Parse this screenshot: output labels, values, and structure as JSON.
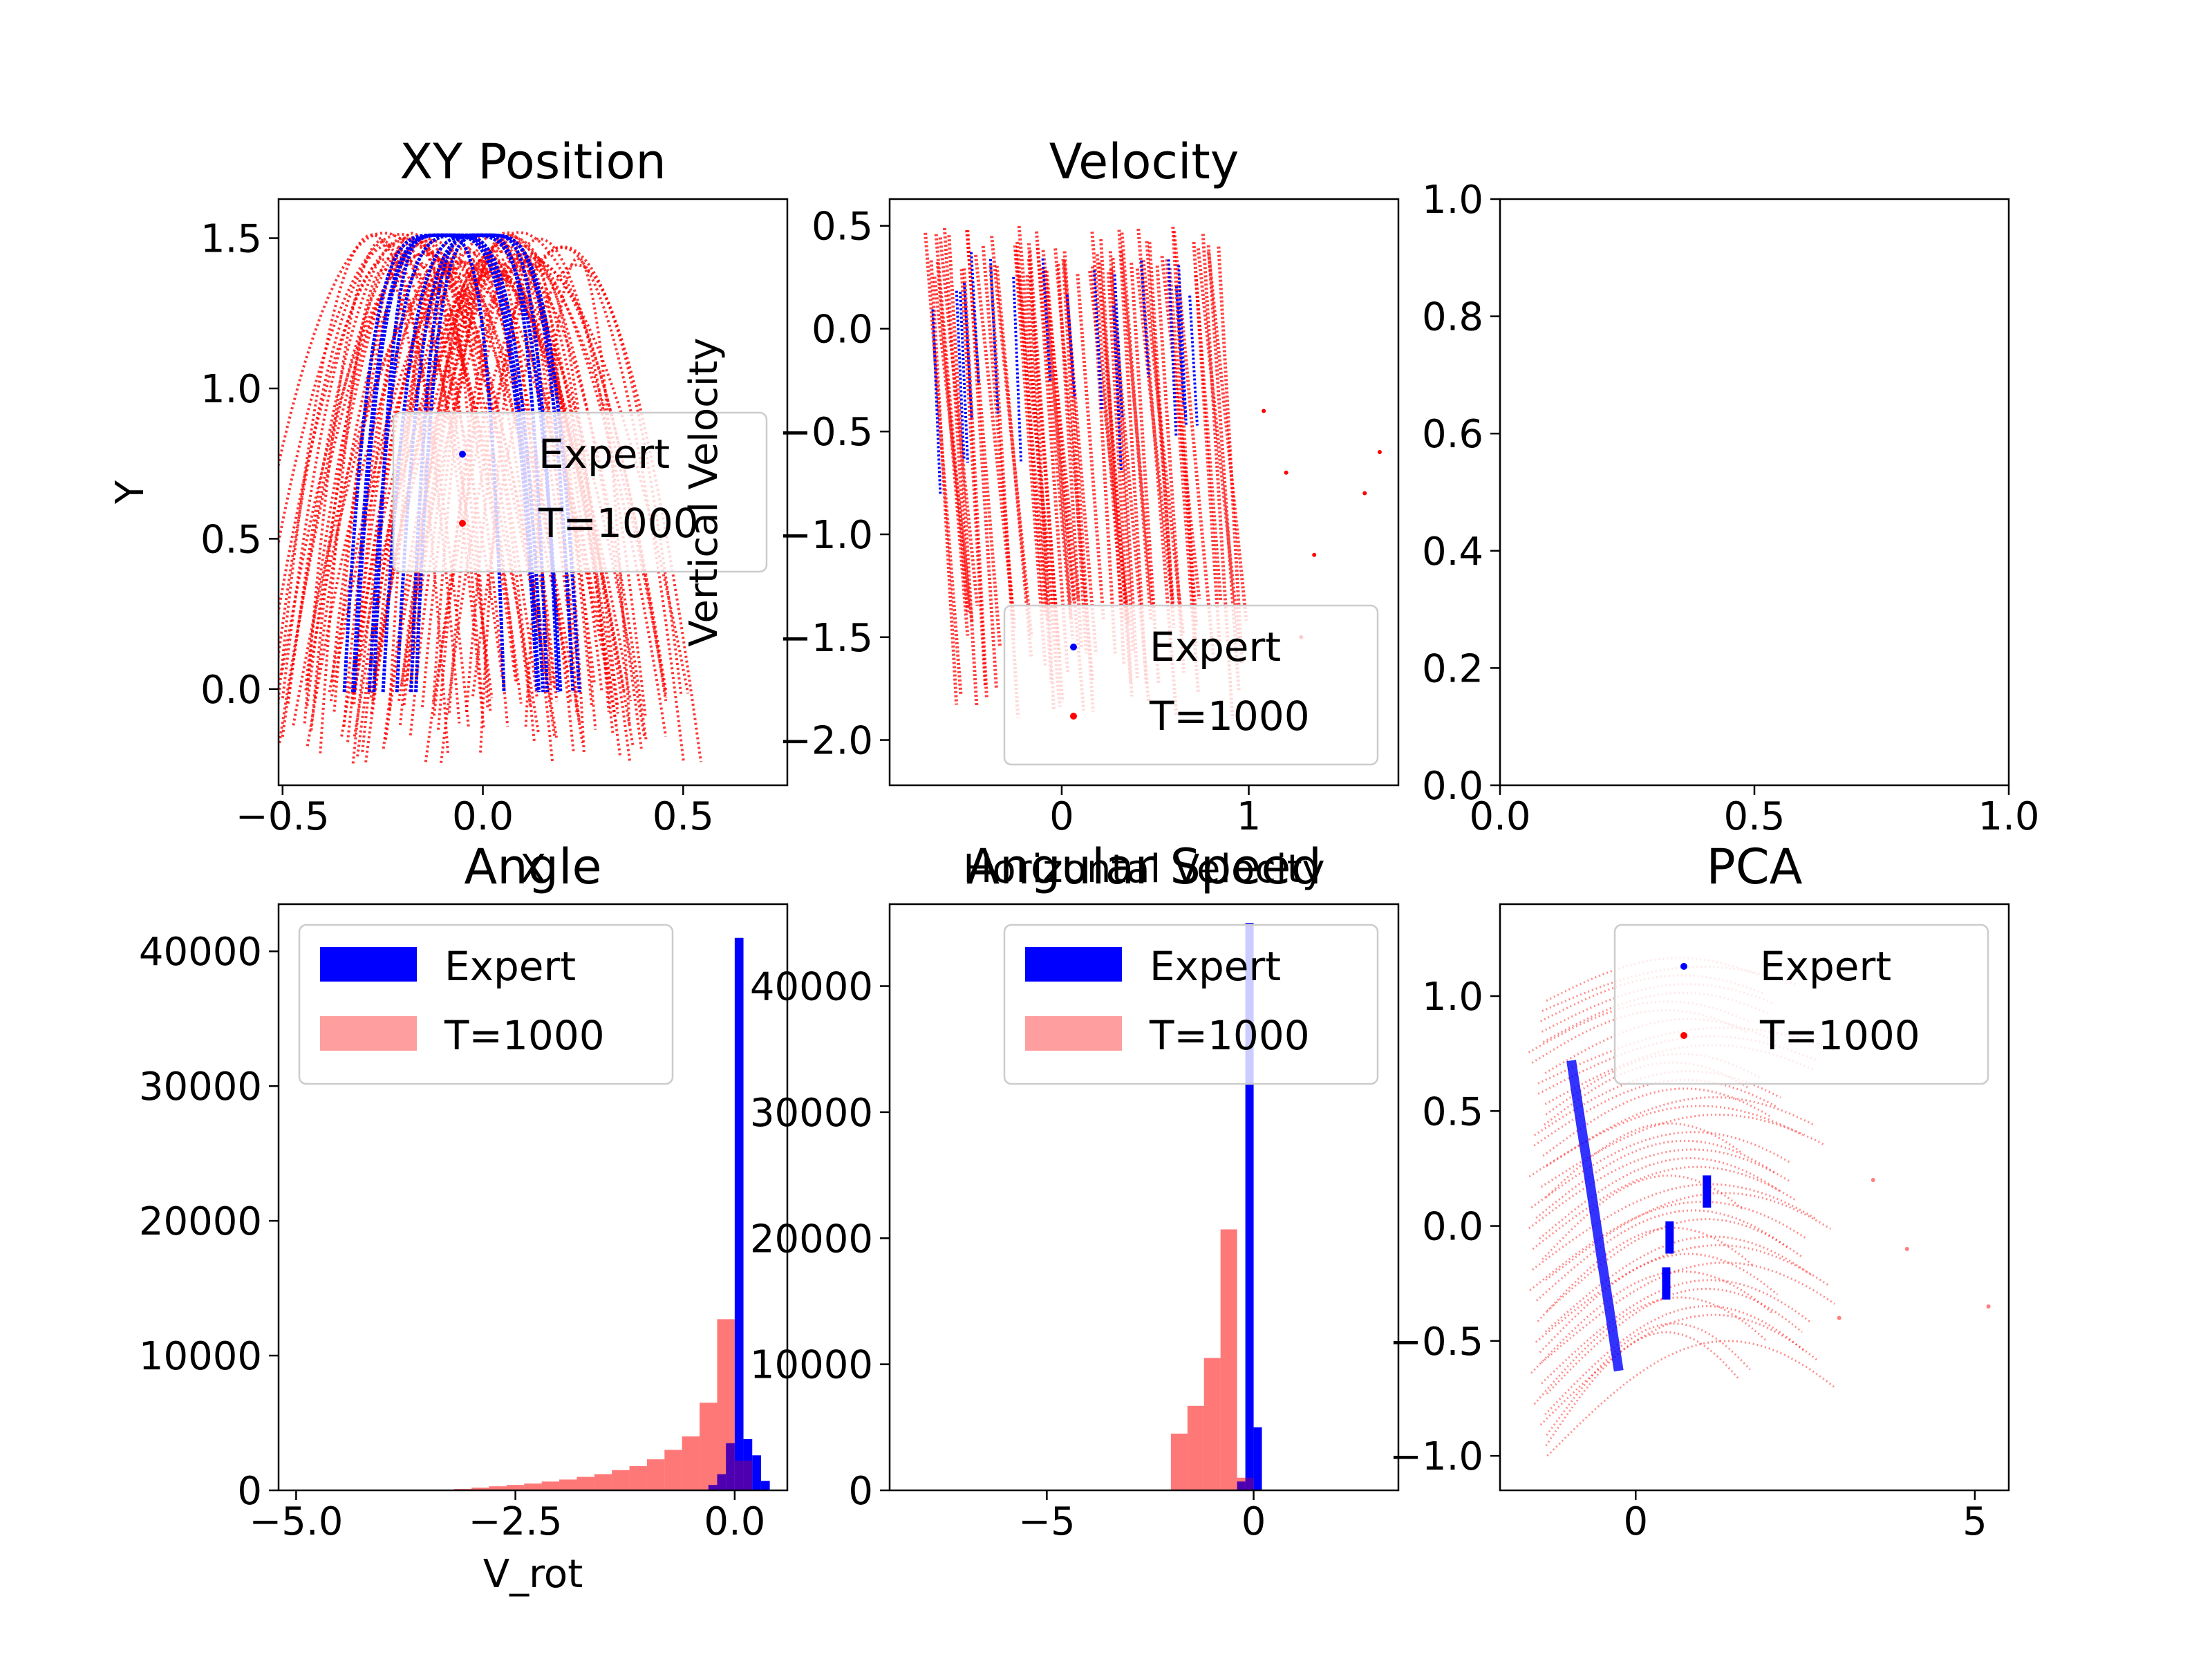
{
  "colors": {
    "expert": "#0000ff",
    "policy": "#ff0000",
    "policy_hist": "#ff9e9e",
    "overlap": "#4b0aa8"
  },
  "chart_data": [
    {
      "id": "xy",
      "type": "scatter",
      "title": "XY Position",
      "xlabel": "X",
      "ylabel": "Y",
      "xlim": [
        -0.51,
        0.76
      ],
      "ylim": [
        -0.32,
        1.63
      ],
      "xticks": [
        "−0.5",
        "0.0",
        "0.5"
      ],
      "xtick_values": [
        -0.5,
        0.0,
        0.5
      ],
      "yticks": [
        "0.0",
        "0.5",
        "1.0",
        "1.5"
      ],
      "ytick_values": [
        0.0,
        0.5,
        1.0,
        1.5
      ],
      "legend": {
        "position": "center-right",
        "entries": [
          "Expert",
          "T=1000"
        ]
      },
      "series": [
        {
          "name": "Expert",
          "shape": "arches",
          "x_range": [
            -0.3,
            0.25
          ],
          "y_range": [
            -0.02,
            1.52
          ]
        },
        {
          "name": "T=1000",
          "shape": "arches",
          "x_range": [
            -0.46,
            0.72
          ],
          "y_range": [
            -0.25,
            1.52
          ]
        }
      ]
    },
    {
      "id": "vel",
      "type": "scatter",
      "title": "Velocity",
      "xlabel": "Horizontal Velocity",
      "ylabel": "Vertical Velocity",
      "xlim": [
        -0.92,
        1.8
      ],
      "ylim": [
        -2.22,
        0.63
      ],
      "xticks": [
        "0",
        "1"
      ],
      "xtick_values": [
        0,
        1
      ],
      "yticks": [
        "−2.0",
        "−1.5",
        "−1.0",
        "−0.5",
        "0.0",
        "0.5"
      ],
      "ytick_values": [
        -2.0,
        -1.5,
        -1.0,
        -0.5,
        0.0,
        0.5
      ],
      "legend": {
        "position": "lower-right",
        "entries": [
          "Expert",
          "T=1000"
        ]
      },
      "series": [
        {
          "name": "Expert",
          "shape": "streaks",
          "x_range": [
            -0.75,
            0.8
          ],
          "y_range": [
            -1.0,
            0.48
          ]
        },
        {
          "name": "T=1000",
          "shape": "streaks",
          "x_range": [
            -0.8,
            1.72
          ],
          "y_range": [
            -1.95,
            0.52
          ]
        }
      ]
    },
    {
      "id": "empty",
      "type": "scatter",
      "title": "",
      "xlim": [
        0,
        1
      ],
      "ylim": [
        0,
        1
      ],
      "xticks": [
        "0.0",
        "0.5",
        "1.0"
      ],
      "xtick_values": [
        0,
        0.5,
        1.0
      ],
      "yticks": [
        "0.0",
        "0.2",
        "0.4",
        "0.6",
        "0.8",
        "1.0"
      ],
      "ytick_values": [
        0,
        0.2,
        0.4,
        0.6,
        0.8,
        1.0
      ],
      "series": []
    },
    {
      "id": "angle",
      "type": "bar",
      "title": "Angle",
      "xlabel": "V_rot",
      "xlim": [
        -5.2,
        0.6
      ],
      "ylim": [
        0,
        43500
      ],
      "xticks": [
        "−5.0",
        "−2.5",
        "0.0"
      ],
      "xtick_values": [
        -5.0,
        -2.5,
        0.0
      ],
      "yticks": [
        "0",
        "10000",
        "20000",
        "30000",
        "40000"
      ],
      "ytick_values": [
        0,
        10000,
        20000,
        30000,
        40000
      ],
      "legend": {
        "position": "upper-left",
        "entries": [
          "Expert",
          "T=1000"
        ]
      },
      "series": [
        {
          "name": "Expert",
          "bin_edges": [
            -0.3,
            -0.2,
            -0.1,
            0.0,
            0.1,
            0.2,
            0.3,
            0.4
          ],
          "counts": [
            400,
            1200,
            3500,
            41000,
            3800,
            2600,
            700
          ]
        },
        {
          "name": "T=1000",
          "bin_edges": [
            -3.2,
            -3.0,
            -2.8,
            -2.6,
            -2.4,
            -2.2,
            -2.0,
            -1.8,
            -1.6,
            -1.4,
            -1.2,
            -1.0,
            -0.8,
            -0.6,
            -0.4,
            -0.2,
            0.0,
            0.2
          ],
          "counts": [
            100,
            200,
            300,
            400,
            500,
            650,
            800,
            1000,
            1200,
            1500,
            1800,
            2300,
            3000,
            4000,
            6500,
            12700,
            2200
          ]
        }
      ]
    },
    {
      "id": "angspeed",
      "type": "bar",
      "title": "Angular Speed",
      "xlabel": "",
      "xlim": [
        -8.8,
        3.5
      ],
      "ylim": [
        0,
        46500
      ],
      "xticks": [
        "−5",
        "0"
      ],
      "xtick_values": [
        -5,
        0
      ],
      "yticks": [
        "0",
        "10000",
        "20000",
        "30000",
        "40000"
      ],
      "ytick_values": [
        0,
        10000,
        20000,
        30000,
        40000
      ],
      "legend": {
        "position": "upper-right",
        "entries": [
          "Expert",
          "T=1000"
        ]
      },
      "series": [
        {
          "name": "Expert",
          "bin_edges": [
            -0.4,
            -0.2,
            0.0,
            0.2,
            0.4
          ],
          "counts": [
            700,
            45000,
            5000,
            0
          ]
        },
        {
          "name": "T=1000",
          "bin_edges": [
            -2.0,
            -1.6,
            -1.2,
            -0.8,
            -0.4,
            0.0
          ],
          "counts": [
            4500,
            6700,
            10500,
            20700,
            1000
          ]
        }
      ]
    },
    {
      "id": "pca",
      "type": "scatter",
      "title": "PCA",
      "xlabel": "",
      "xlim": [
        -2.0,
        5.5
      ],
      "ylim": [
        -1.15,
        1.4
      ],
      "xticks": [
        "0",
        "5"
      ],
      "xtick_values": [
        0,
        5
      ],
      "yticks": [
        "−1.0",
        "−0.5",
        "0.0",
        "0.5",
        "1.0"
      ],
      "ytick_values": [
        -1.0,
        -0.5,
        0.0,
        0.5,
        1.0
      ],
      "legend": {
        "position": "upper-right",
        "entries": [
          "Expert",
          "T=1000"
        ]
      },
      "series": [
        {
          "name": "Expert",
          "shape": "band",
          "x_range": [
            -1.0,
            1.1
          ],
          "y_range": [
            -0.65,
            0.75
          ]
        },
        {
          "name": "T=1000",
          "shape": "arcs",
          "x_range": [
            -1.8,
            5.2
          ],
          "y_range": [
            -1.05,
            1.22
          ]
        }
      ]
    }
  ]
}
